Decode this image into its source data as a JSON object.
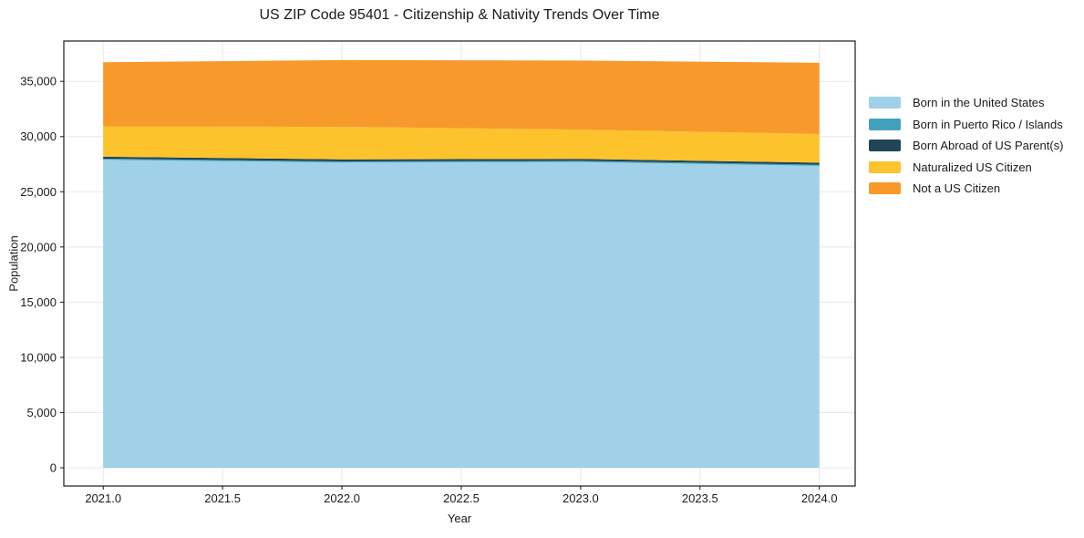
{
  "title": "US ZIP Code 95401 - Citizenship & Nativity Trends Over Time",
  "chart_data": {
    "type": "area",
    "stacked": true,
    "title": "US ZIP Code 95401 - Citizenship & Nativity Trends Over Time",
    "xlabel": "Year",
    "ylabel": "Population",
    "x": [
      2021,
      2022,
      2023,
      2024
    ],
    "series": [
      {
        "name": "Born in the United States",
        "color": "#a0d1e8",
        "values": [
          27900,
          27650,
          27700,
          27350
        ]
      },
      {
        "name": "Born in Puerto Rico / Islands",
        "color": "#41a2bd",
        "values": [
          100,
          100,
          100,
          100
        ]
      },
      {
        "name": "Born Abroad of US Parent(s)",
        "color": "#1f4557",
        "values": [
          180,
          180,
          180,
          180
        ]
      },
      {
        "name": "Naturalized US Citizen",
        "color": "#fdc32c",
        "values": [
          2750,
          2950,
          2650,
          2600
        ]
      },
      {
        "name": "Not a US Citizen",
        "color": "#f8992b",
        "values": [
          5800,
          6050,
          6250,
          6450
        ]
      }
    ],
    "totals": [
      36730,
      36930,
      36880,
      36680
    ],
    "xlim": [
      2020.835,
      2024.15
    ],
    "ylim": [
      -1650,
      38650
    ],
    "xticks": [
      2021.0,
      2021.5,
      2022.0,
      2022.5,
      2023.0,
      2023.5,
      2024.0
    ],
    "xtick_labels": [
      "2021.0",
      "2021.5",
      "2022.0",
      "2022.5",
      "2023.0",
      "2023.5",
      "2024.0"
    ],
    "yticks": [
      0,
      5000,
      10000,
      15000,
      20000,
      25000,
      30000,
      35000
    ],
    "ytick_labels": [
      "0",
      "5,000",
      "10,000",
      "15,000",
      "20,000",
      "25,000",
      "30,000",
      "35,000"
    ],
    "grid": true,
    "grid_color": "#e8e8e8",
    "frame_color": "#1a1a1a",
    "legend_position": "right"
  }
}
